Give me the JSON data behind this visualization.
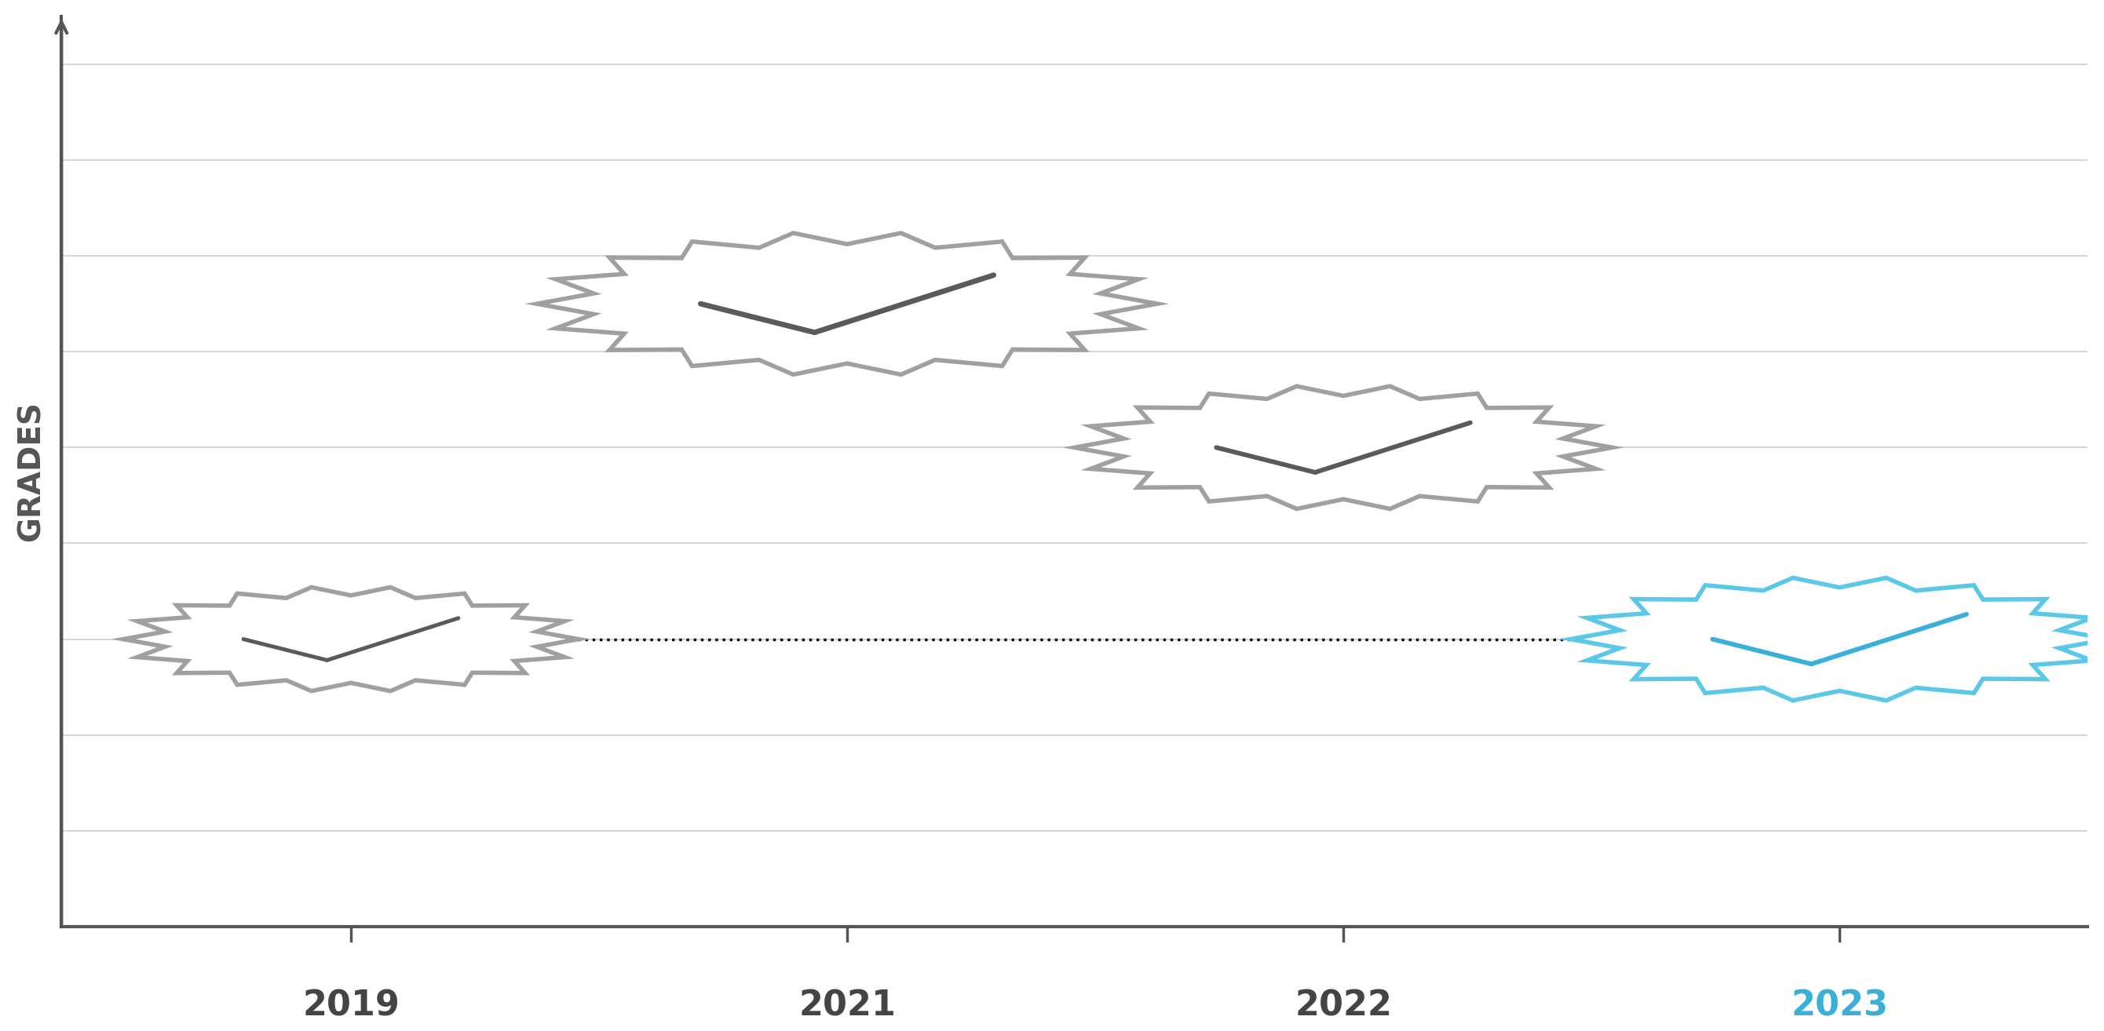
{
  "years": [
    "2019",
    "2021",
    "2022",
    "2023"
  ],
  "y_values": [
    3.0,
    6.5,
    5.0,
    3.0
  ],
  "dotted_line_y": 3.0,
  "ylabel": "GRADES",
  "xlim": [
    0.3,
    5.2
  ],
  "ylim": [
    0.0,
    9.5
  ],
  "x_positions": [
    1.0,
    2.2,
    3.4,
    4.6
  ],
  "badge_colors": [
    "#a0a0a0",
    "#a0a0a0",
    "#a0a0a0",
    "#5bc8e8"
  ],
  "check_colors": [
    "#5a5a5a",
    "#5a5a5a",
    "#5a5a5a",
    "#3ab0d8"
  ],
  "year_colors": [
    "#444444",
    "#444444",
    "#444444",
    "#3ab0d8"
  ],
  "background_color": "#ffffff",
  "axis_color": "#555555",
  "grid_color": "#d0d0d0",
  "dotted_line_color": "#111111",
  "badge_sizes": [
    0.55,
    0.75,
    0.65,
    0.65
  ],
  "year_fontsize": 32,
  "ylabel_fontsize": 28
}
